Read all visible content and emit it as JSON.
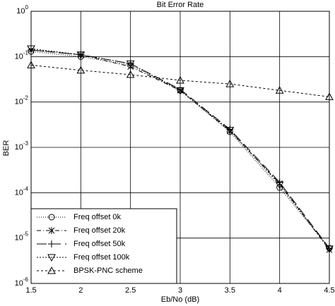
{
  "chart_data": {
    "type": "line",
    "title": "Bit Error Rate",
    "x_label": "Eb/No (dB)",
    "y_label": "BER",
    "x": [
      1.5,
      2,
      2.5,
      3,
      3.5,
      4,
      4.5
    ],
    "series": [
      {
        "name": "Freq offset 0k",
        "color": "#000000",
        "marker": "circle",
        "dash": "1,2",
        "values": [
          0.13,
          0.1,
          0.065,
          0.018,
          0.0022,
          0.00013,
          6e-06
        ]
      },
      {
        "name": "Freq offset 20k",
        "color": "#000000",
        "marker": "star",
        "dash": "6,3,1,3",
        "values": [
          0.14,
          0.11,
          0.06,
          0.018,
          0.0023,
          0.00016,
          5.5e-06
        ]
      },
      {
        "name": "Freq offset 50k",
        "color": "#000000",
        "marker": "plus",
        "dash": "14,6",
        "values": [
          0.14,
          0.11,
          0.07,
          0.019,
          0.0025,
          0.00017,
          6e-06
        ]
      },
      {
        "name": "Freq offset 100k",
        "color": "#000000",
        "marker": "triangle-down",
        "dash": "2,2",
        "values": [
          0.15,
          0.11,
          0.07,
          0.018,
          0.0024,
          0.00015,
          5.8e-06
        ]
      },
      {
        "name": "BPSK-PNC scheme",
        "color": "#000000",
        "marker": "triangle-up",
        "dash": "3,3",
        "values": [
          0.065,
          0.05,
          0.04,
          0.03,
          0.025,
          0.018,
          0.013
        ]
      }
    ],
    "xlim": [
      1.5,
      4.5
    ],
    "xticks": [
      1.5,
      2,
      2.5,
      3,
      3.5,
      4,
      4.5
    ],
    "ylim": [
      1e-06,
      1
    ],
    "log_y": true,
    "yticks": [
      {
        "value": 1e-06,
        "label": "10^-6"
      },
      {
        "value": 1e-05,
        "label": "10^-5"
      },
      {
        "value": 0.0001,
        "label": "10^-4"
      },
      {
        "value": 0.001,
        "label": "10^-3"
      },
      {
        "value": 0.01,
        "label": "10^-2"
      },
      {
        "value": 0.1,
        "label": "10^-1"
      },
      {
        "value": 1,
        "label": "10^0"
      }
    ],
    "grid": true,
    "legend": "lower-left"
  }
}
